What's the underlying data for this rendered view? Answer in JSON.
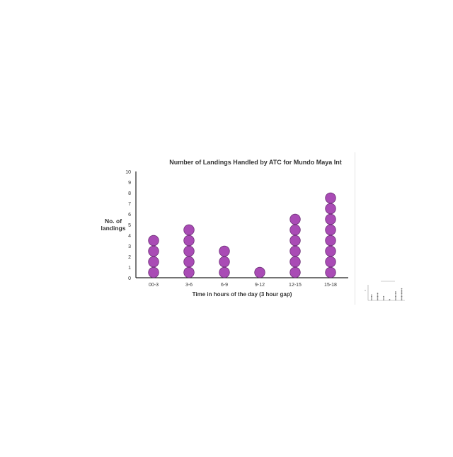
{
  "chart_data": {
    "type": "dot",
    "title": "Number of Landings Handled by ATC for Mundo Maya Int",
    "xlabel": "Time in hours of the day (3 hour gap)",
    "ylabel": "No. of landings",
    "ylim": [
      0,
      10
    ],
    "yticks": [
      "0",
      "1",
      "2",
      "3",
      "4",
      "5",
      "6",
      "7",
      "8",
      "9",
      "10"
    ],
    "categories": [
      "00-3",
      "3-6",
      "6-9",
      "9-12",
      "12-15",
      "15-18"
    ],
    "values": [
      4,
      5,
      3,
      1,
      6,
      8
    ],
    "grid": false,
    "legend": "none"
  },
  "colors": {
    "dot_fill": "#A94BB5",
    "dot_stroke": "#6E2F78",
    "axis": "#222222",
    "text": "#333333"
  }
}
